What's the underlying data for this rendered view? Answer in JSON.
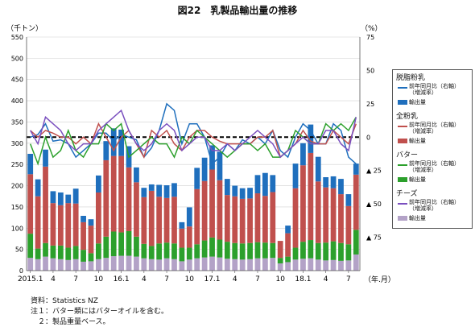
{
  "title": "図22　乳製品輸出量の推移",
  "unit_left": "（千トン）",
  "unit_right": "（%）",
  "unit_x": "（年.月）",
  "notes": {
    "source": "資料：Statistics NZ",
    "note1": "注１：バター類にはバターオイルを含む。",
    "note2": "　２：製品重量ベース。"
  },
  "legend": {
    "wmp": {
      "label": "脱脂粉乳",
      "line": "前年同月比（右軸）",
      "line2": "（増減率）",
      "bar": "輸出量"
    },
    "smp": {
      "label": "全粉乳",
      "line": "前年同月比（右軸）",
      "line2": "（増減率）",
      "bar": "輸出量"
    },
    "butter": {
      "label": "バター",
      "line": "前年同月比（右軸）",
      "line2": "（増減率）",
      "bar": "輸出量"
    },
    "cheese": {
      "label": "チーズ",
      "line": "前年同月比（右軸）",
      "line2": "（増減率）",
      "bar": "輸出量"
    }
  },
  "chart_data": {
    "type": "bar",
    "stacked": true,
    "x_tick_labels": [
      "2015.1",
      "4",
      "7",
      "10",
      "16.1",
      "4",
      "7",
      "10",
      "17.1",
      "4",
      "7",
      "10",
      "18.1",
      "4",
      "7"
    ],
    "x_tick_indices": [
      0,
      3,
      6,
      9,
      12,
      15,
      18,
      21,
      24,
      27,
      30,
      33,
      36,
      39,
      42
    ],
    "ylim_left": [
      0,
      550
    ],
    "yticks_left": [
      0,
      50,
      100,
      150,
      200,
      250,
      300,
      350,
      400,
      450,
      500,
      550
    ],
    "ylim_right": [
      -100,
      75
    ],
    "yticks_right": [
      75,
      50,
      25,
      0,
      -25,
      -50,
      -75
    ],
    "yticks_right_labels": [
      "75",
      "50",
      "25",
      "0",
      "▲ 25",
      "▲ 50",
      "▲ 75"
    ],
    "colors": {
      "skim": "#1f6fbd",
      "whole": "#c0504d",
      "butter": "#2ca02c",
      "cheese": "#b3a2c7",
      "skim_line": "#1f6fbd",
      "whole_line": "#c0504d",
      "butter_line": "#2ca02c",
      "cheese_line": "#7a4fbf"
    },
    "series_bars": [
      {
        "name": "チーズ",
        "key": "cheese",
        "values": [
          30,
          27,
          33,
          29,
          27,
          25,
          27,
          21,
          22,
          27,
          30,
          34,
          35,
          35,
          33,
          29,
          27,
          26,
          29,
          27,
          22,
          26,
          29,
          31,
          33,
          31,
          28,
          27,
          26,
          27,
          29,
          29,
          30,
          17,
          20,
          26,
          28,
          29,
          26,
          24,
          25,
          23,
          24,
          38
        ]
      },
      {
        "name": "バター",
        "key": "butter",
        "values": [
          57,
          25,
          32,
          30,
          32,
          29,
          31,
          28,
          19,
          37,
          50,
          58,
          55,
          58,
          47,
          34,
          31,
          38,
          37,
          37,
          32,
          28,
          33,
          40,
          45,
          42,
          40,
          38,
          38,
          38,
          38,
          37,
          35,
          13,
          13,
          28,
          40,
          43,
          39,
          42,
          44,
          42,
          38,
          58
        ]
      },
      {
        "name": "全粉乳",
        "key": "whole",
        "values": [
          140,
          123,
          180,
          100,
          95,
          105,
          100,
          65,
          65,
          120,
          180,
          178,
          180,
          150,
          128,
          110,
          130,
          110,
          105,
          110,
          45,
          50,
          130,
          140,
          160,
          140,
          110,
          110,
          105,
          105,
          115,
          110,
          120,
          40,
          55,
          140,
          180,
          205,
          145,
          130,
          125,
          115,
          90,
          130
        ]
      },
      {
        "name": "脱脂粉乳",
        "key": "skim",
        "values": [
          48,
          40,
          40,
          28,
          30,
          20,
          35,
          15,
          15,
          40,
          45,
          65,
          62,
          50,
          35,
          22,
          15,
          28,
          30,
          32,
          15,
          45,
          50,
          55,
          57,
          67,
          38,
          25,
          25,
          25,
          43,
          54,
          40,
          0,
          18,
          58,
          52,
          67,
          58,
          24,
          28,
          36,
          28,
          26
        ]
      }
    ],
    "series_lines": [
      {
        "name": "脱脂粉乳 前年同月比",
        "key": "skim_line",
        "values": [
          0,
          2,
          10,
          -3,
          -2,
          -5,
          -15,
          -10,
          -5,
          3,
          3,
          -3,
          2,
          0,
          -2,
          -15,
          -8,
          5,
          25,
          20,
          -5,
          10,
          10,
          0,
          -20,
          -15,
          -5,
          -10,
          -2,
          -5,
          0,
          -5,
          5,
          -10,
          -15,
          0,
          10,
          5,
          -5,
          -5,
          10,
          5,
          -15,
          -20
        ]
      },
      {
        "name": "全粉乳 前年同月比",
        "key": "whole_line",
        "values": [
          5,
          0,
          5,
          3,
          0,
          0,
          -5,
          0,
          -5,
          10,
          0,
          -10,
          0,
          5,
          -5,
          -15,
          5,
          0,
          5,
          -5,
          -10,
          0,
          5,
          5,
          0,
          -3,
          -5,
          -5,
          -5,
          -5,
          0,
          0,
          5,
          -15,
          -10,
          -5,
          5,
          -3,
          -5,
          -5,
          5,
          0,
          -5,
          10
        ]
      },
      {
        "name": "バター 前年同月比",
        "key": "butter_line",
        "values": [
          -5,
          -20,
          0,
          -15,
          -10,
          5,
          -10,
          -15,
          -5,
          -5,
          10,
          5,
          10,
          -15,
          -10,
          -5,
          0,
          -5,
          -5,
          -15,
          0,
          -5,
          5,
          0,
          -5,
          -10,
          -15,
          -10,
          -5,
          -5,
          -10,
          -5,
          -15,
          -15,
          -10,
          5,
          0,
          -5,
          -5,
          10,
          5,
          10,
          5,
          15
        ]
      },
      {
        "name": "チーズ 前年同月比",
        "key": "cheese_line",
        "values": [
          5,
          -5,
          15,
          10,
          5,
          -5,
          -10,
          -5,
          -5,
          5,
          10,
          15,
          20,
          5,
          -5,
          -10,
          -5,
          5,
          10,
          5,
          -10,
          -5,
          0,
          0,
          -10,
          -10,
          -5,
          -10,
          -5,
          0,
          5,
          0,
          -5,
          -15,
          -10,
          -5,
          0,
          -5,
          -5,
          5,
          5,
          -5,
          -10,
          15
        ]
      }
    ],
    "zero_line": "dashed"
  }
}
